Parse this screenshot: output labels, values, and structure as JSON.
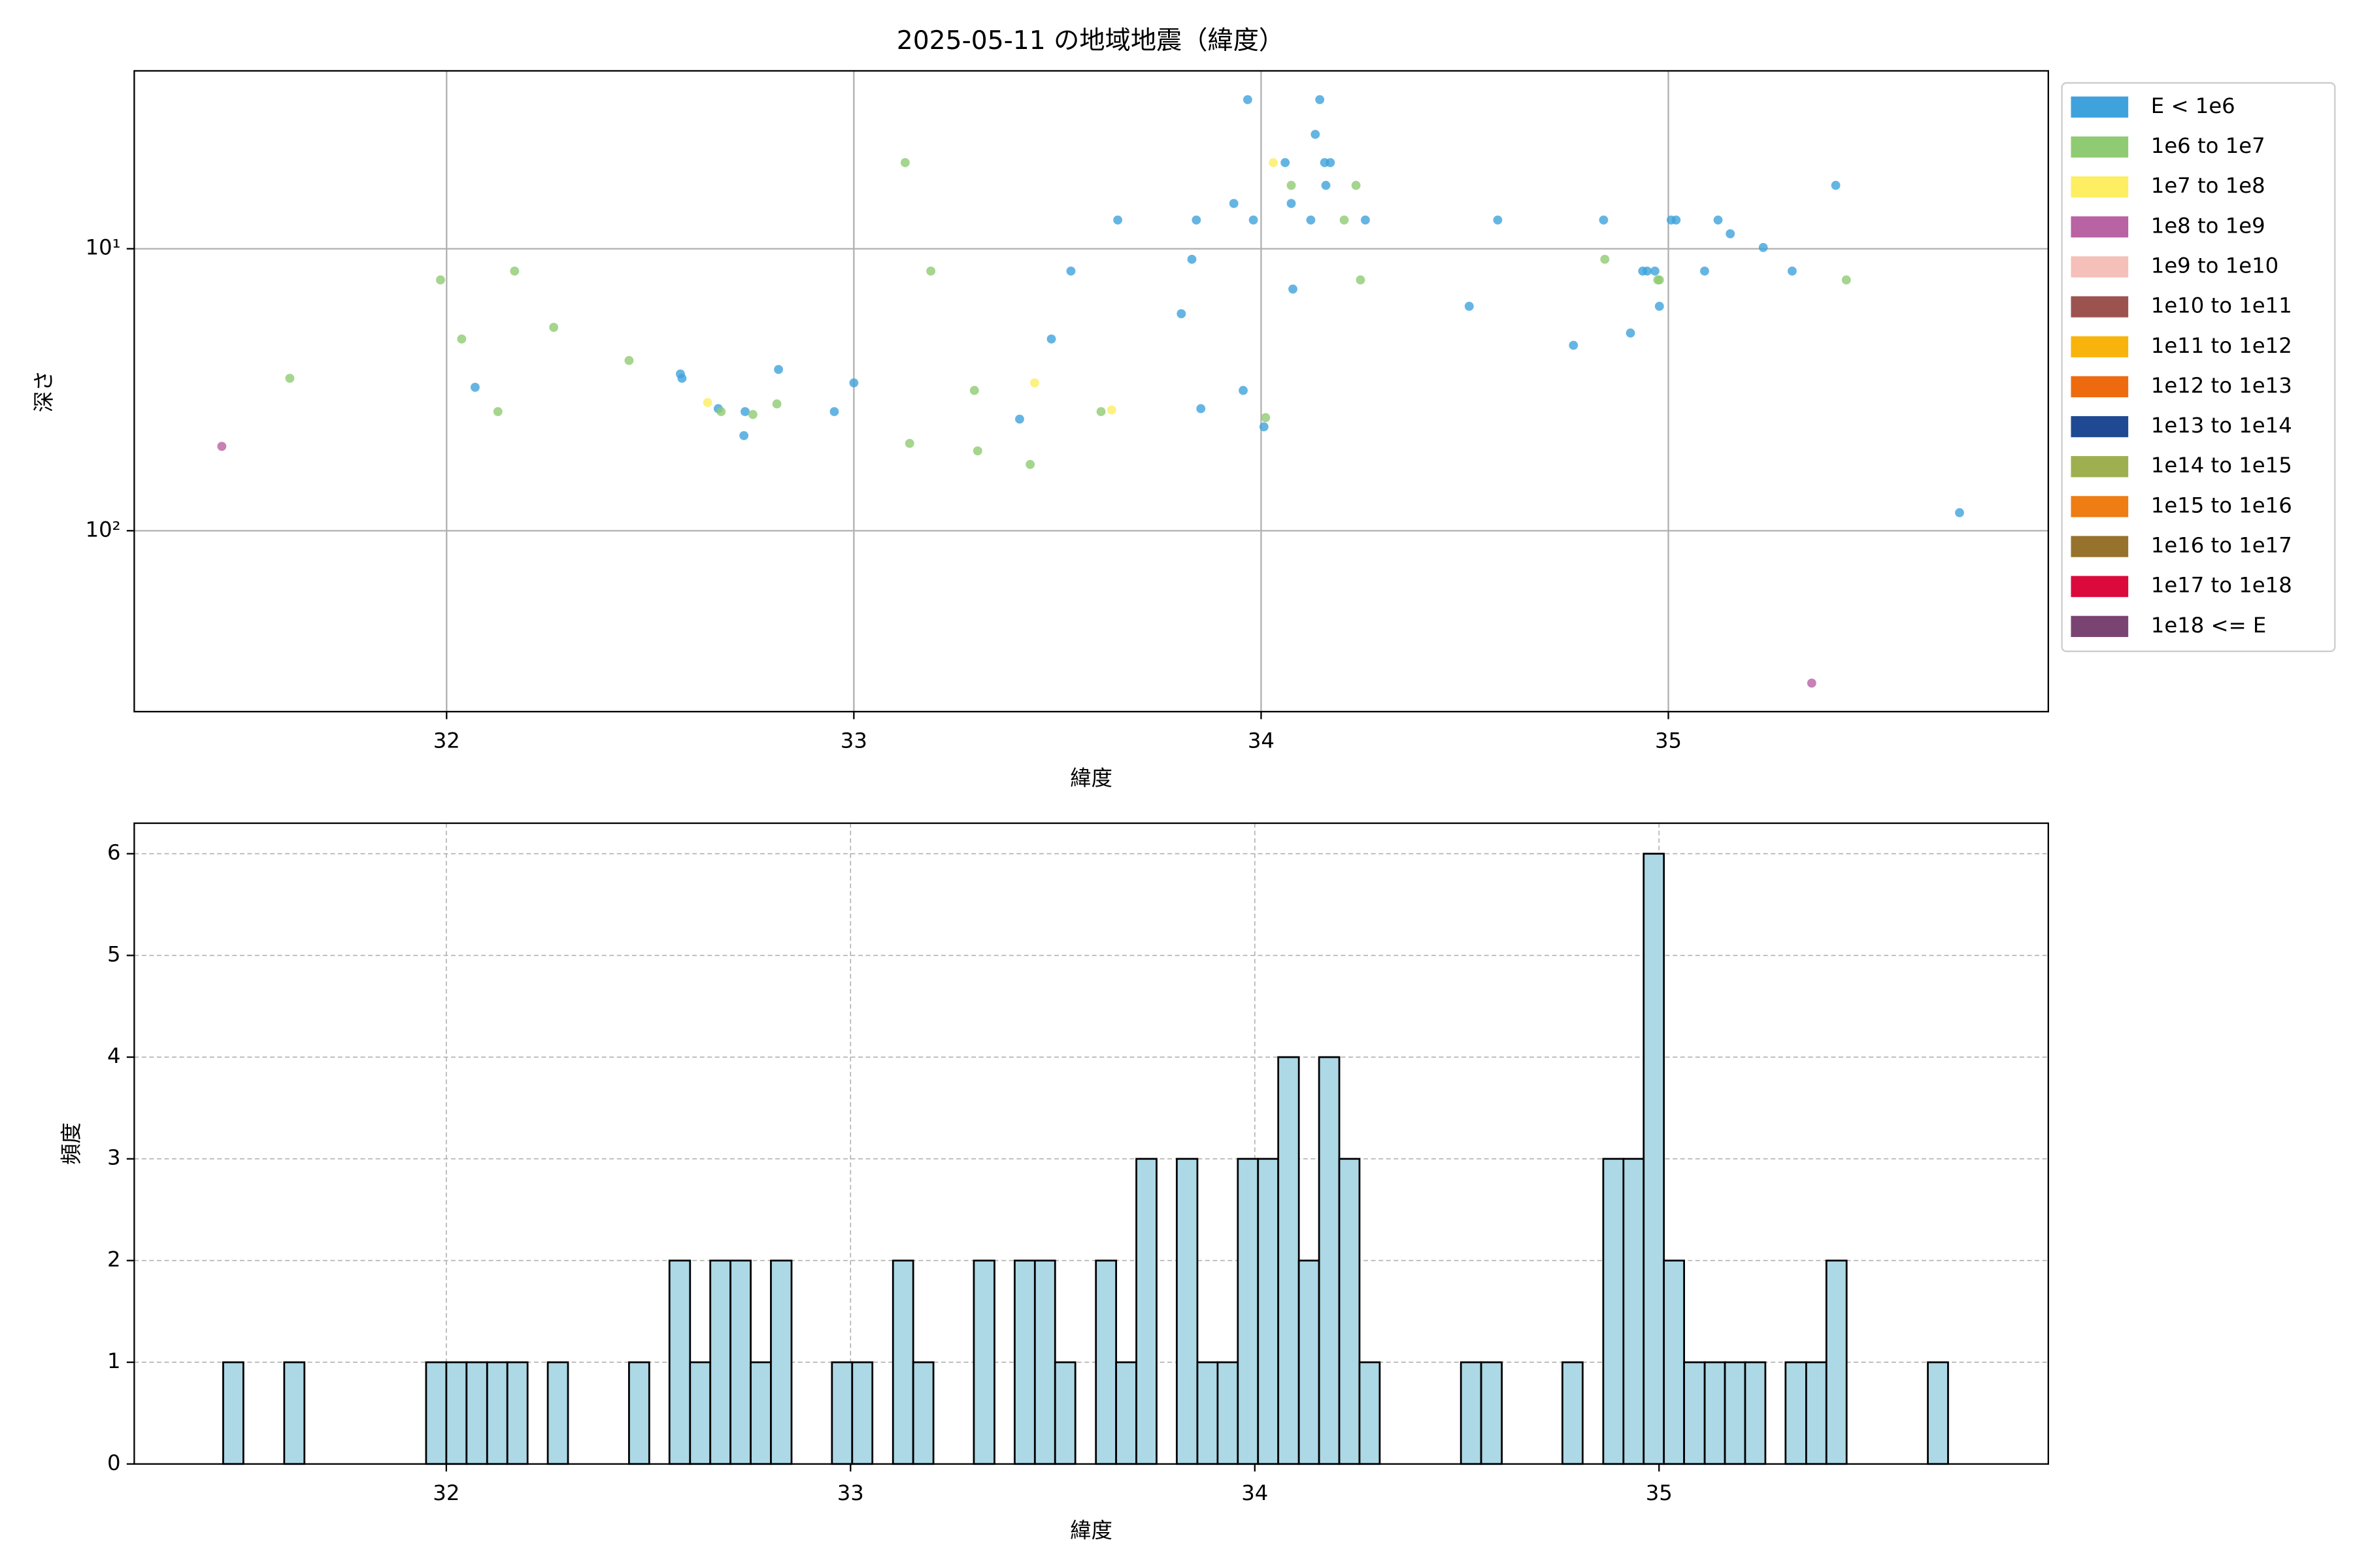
{
  "chart_data": [
    {
      "type": "scatter",
      "title": "2025-05-11 の地域地震（緯度）",
      "x_label": "緯度",
      "y_label": "深さ",
      "xlim": [
        31.233,
        35.933
      ],
      "xticks": [
        32,
        33,
        34,
        35
      ],
      "ylim": [
        438,
        2.34
      ],
      "yscale": "log",
      "yticks": [
        {
          "value": 10,
          "label": "10¹"
        },
        {
          "value": 100,
          "label": "10²"
        }
      ],
      "grid": true,
      "legend": "outside upper right",
      "series": [
        {
          "name": "E < 1e6",
          "color": "#3fa2dc",
          "x": [
            32.07,
            32.574,
            32.578,
            32.667,
            32.73,
            32.733,
            32.815,
            32.952,
            33.0,
            33.407,
            33.485,
            33.533,
            33.648,
            33.804,
            33.83,
            33.841,
            33.852,
            33.933,
            33.956,
            33.967,
            33.981,
            34.007,
            34.059,
            34.074,
            34.078,
            34.122,
            34.133,
            34.144,
            34.156,
            34.159,
            34.17,
            34.256,
            34.511,
            34.581,
            34.767,
            34.841,
            34.907,
            34.937,
            34.948,
            34.967,
            34.978,
            35.007,
            35.019,
            35.089,
            35.122,
            35.152,
            35.233,
            35.304,
            35.411,
            35.715
          ],
          "values": [
            31.0,
            27.8,
            28.8,
            36.9,
            46.0,
            37.8,
            26.8,
            37.8,
            29.9,
            40.2,
            20.9,
            12.0,
            7.91,
            17.0,
            10.9,
            7.91,
            36.9,
            6.91,
            31.8,
            2.96,
            7.91,
            42.8,
            4.95,
            6.91,
            13.9,
            7.91,
            3.93,
            2.96,
            4.95,
            5.96,
            4.95,
            7.91,
            16.0,
            7.91,
            22.0,
            7.91,
            19.9,
            12.0,
            12.0,
            12.0,
            16.0,
            7.91,
            7.91,
            12.0,
            7.91,
            8.85,
            9.9,
            12.0,
            5.96,
            86.3
          ]
        },
        {
          "name": "1e6 to 1e7",
          "color": "#8fcb72",
          "x": [
            31.615,
            31.985,
            32.037,
            32.126,
            32.167,
            32.263,
            32.448,
            32.674,
            32.752,
            32.811,
            33.126,
            33.137,
            33.189,
            33.296,
            33.304,
            33.433,
            33.607,
            34.011,
            34.074,
            34.204,
            34.233,
            34.244,
            34.844,
            34.974,
            34.978,
            35.437
          ],
          "values": [
            28.8,
            12.9,
            20.9,
            37.8,
            12.0,
            19.0,
            24.9,
            37.8,
            38.7,
            35.5,
            4.95,
            49.0,
            12.0,
            31.8,
            52.1,
            58.2,
            37.8,
            39.7,
            5.96,
            7.91,
            5.96,
            12.9,
            10.9,
            12.9,
            12.9,
            12.9
          ]
        },
        {
          "name": "1e7 to 1e8",
          "color": "#fdee62",
          "x": [
            32.641,
            33.444,
            33.633,
            34.03
          ],
          "values": [
            35.1,
            29.9,
            37.3,
            4.95
          ]
        },
        {
          "name": "1e8 to 1e9",
          "color": "#b962a4",
          "x": [
            31.448,
            35.352
          ],
          "values": [
            50.2,
            347
          ]
        },
        {
          "name": "1e9 to 1e10",
          "color": "#f5c0b9",
          "x": [],
          "values": []
        },
        {
          "name": "1e10 to 1e11",
          "color": "#9c5350",
          "x": [],
          "values": []
        },
        {
          "name": "1e11 to 1e12",
          "color": "#f8b40d",
          "x": [],
          "values": []
        },
        {
          "name": "1e12 to 1e13",
          "color": "#ee6a0e",
          "x": [],
          "values": []
        },
        {
          "name": "1e13 to 1e14",
          "color": "#1f4a93",
          "x": [],
          "values": []
        },
        {
          "name": "1e14 to 1e15",
          "color": "#9eaf50",
          "x": [],
          "values": []
        },
        {
          "name": "1e15 to 1e16",
          "color": "#ee7d14",
          "x": [],
          "values": []
        },
        {
          "name": "1e16 to 1e17",
          "color": "#96722d",
          "x": [],
          "values": []
        },
        {
          "name": "1e17 to 1e18",
          "color": "#dc0a3c",
          "x": [],
          "values": []
        },
        {
          "name": "1e18 <= E",
          "color": "#7a4472",
          "x": [],
          "values": []
        }
      ]
    },
    {
      "type": "histogram",
      "x_label": "緯度",
      "y_label": "頻度",
      "color": "#add8e6",
      "edgecolor": "#000000",
      "xlim": [
        31.228,
        35.963
      ],
      "xticks": [
        32,
        33,
        34,
        35
      ],
      "ylim": [
        0,
        6.3
      ],
      "yticks": [
        0,
        1,
        2,
        3,
        4,
        5,
        6
      ],
      "grid": "dashed",
      "bins": [
        31.448,
        31.498,
        31.548,
        31.599,
        31.649,
        31.699,
        31.749,
        31.799,
        31.85,
        31.9,
        31.95,
        32.0,
        32.05,
        32.101,
        32.151,
        32.201,
        32.251,
        32.301,
        32.352,
        32.402,
        32.452,
        32.502,
        32.552,
        32.603,
        32.653,
        32.703,
        32.753,
        32.803,
        32.854,
        32.904,
        32.954,
        33.004,
        33.054,
        33.105,
        33.155,
        33.205,
        33.255,
        33.305,
        33.356,
        33.406,
        33.456,
        33.506,
        33.556,
        33.607,
        33.657,
        33.707,
        33.757,
        33.807,
        33.858,
        33.908,
        33.958,
        34.008,
        34.058,
        34.109,
        34.159,
        34.209,
        34.259,
        34.309,
        34.36,
        34.41,
        34.46,
        34.51,
        34.56,
        34.611,
        34.661,
        34.711,
        34.761,
        34.811,
        34.862,
        34.912,
        34.962,
        35.012,
        35.062,
        35.113,
        35.163,
        35.213,
        35.263,
        35.313,
        35.364,
        35.414,
        35.464,
        35.514,
        35.564,
        35.615,
        35.665,
        35.715
      ],
      "values": [
        1,
        0,
        0,
        1,
        0,
        0,
        0,
        0,
        0,
        0,
        1,
        1,
        1,
        1,
        1,
        0,
        1,
        0,
        0,
        0,
        1,
        0,
        2,
        1,
        2,
        2,
        1,
        2,
        0,
        0,
        1,
        1,
        0,
        2,
        1,
        0,
        0,
        2,
        0,
        2,
        2,
        1,
        0,
        2,
        1,
        3,
        0,
        3,
        1,
        1,
        3,
        3,
        4,
        2,
        4,
        3,
        1,
        0,
        0,
        0,
        0,
        1,
        1,
        0,
        0,
        0,
        1,
        0,
        3,
        3,
        6,
        2,
        1,
        1,
        1,
        1,
        0,
        1,
        1,
        2,
        0,
        0,
        0,
        0,
        1
      ]
    }
  ]
}
